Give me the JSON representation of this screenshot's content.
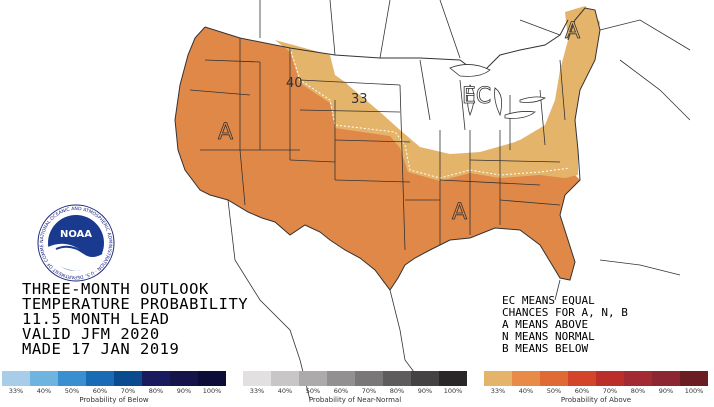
{
  "map": {
    "labels": {
      "contour_40": "40",
      "contour_33": "33",
      "ec_label": "EC",
      "above_west": "A",
      "above_south": "A",
      "above_northeast": "A"
    },
    "colors": {
      "above_33": "#e5b46b",
      "above_40": "#e08848",
      "state_line": "#333333",
      "background": "#ffffff"
    },
    "categories": {
      "above_40_region": "Above normal 40-50%",
      "above_33_region": "Above normal 33-40%",
      "ec_region": "Equal chances"
    }
  },
  "logo": {
    "name": "NOAA",
    "ring_text": "NATIONAL OCEANIC AND ATMOSPHERIC ADMINISTRATION · U.S. DEPARTMENT OF COMMERCE",
    "icon": "noaa-logo"
  },
  "title": {
    "line1": "THREE-MONTH OUTLOOK",
    "line2": "TEMPERATURE PROBABILITY",
    "line3": "11.5 MONTH LEAD",
    "line4": "VALID JFM 2020",
    "line5": "MADE 17 JAN 2019"
  },
  "legend_text": {
    "line1": "EC MEANS EQUAL",
    "line2": "CHANCES FOR A, N, B",
    "line3": "A MEANS ABOVE",
    "line4": "N MEANS NORMAL",
    "line5": "B MEANS BELOW"
  },
  "scales": {
    "below": {
      "caption": "Probability of Below",
      "ticks": [
        "33%",
        "40%",
        "50%",
        "60%",
        "70%",
        "80%",
        "90%",
        "100%"
      ],
      "colors": [
        "#a8cde8",
        "#6fb3e0",
        "#3a8fd0",
        "#1a6bb5",
        "#0a4a8f",
        "#1a1a5e",
        "#14144a",
        "#0c0c38"
      ]
    },
    "normal": {
      "caption": "Probability of Near-Normal",
      "ticks": [
        "33%",
        "40%",
        "50%",
        "60%",
        "70%",
        "80%",
        "90%",
        "100%"
      ],
      "colors": [
        "#e3e0e2",
        "#c9c6c8",
        "#adaaac",
        "#939092",
        "#7a7779",
        "#5f5c5e",
        "#444243",
        "#292728"
      ]
    },
    "above": {
      "caption": "Probability of Above",
      "ticks": [
        "33%",
        "40%",
        "50%",
        "60%",
        "70%",
        "80%",
        "90%",
        "100%"
      ],
      "colors": [
        "#e5b46b",
        "#e88a48",
        "#e06a34",
        "#d2452b",
        "#bb2e2a",
        "#a32a33",
        "#8c2630",
        "#6a1e22"
      ]
    }
  }
}
